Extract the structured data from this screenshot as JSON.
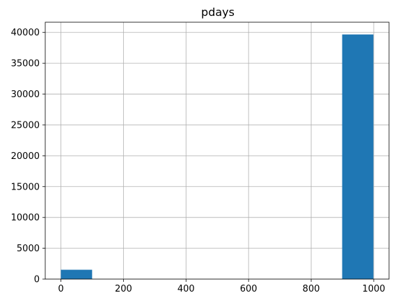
{
  "chart_data": {
    "type": "bar",
    "title": "pdays",
    "xlabel": "",
    "ylabel": "",
    "bins": [
      {
        "x0": 0,
        "x1": 99.9,
        "count": 1515
      },
      {
        "x0": 99.9,
        "x1": 199.8,
        "count": 0
      },
      {
        "x0": 199.8,
        "x1": 299.7,
        "count": 0
      },
      {
        "x0": 299.7,
        "x1": 399.6,
        "count": 0
      },
      {
        "x0": 399.6,
        "x1": 499.5,
        "count": 0
      },
      {
        "x0": 499.5,
        "x1": 599.4,
        "count": 0
      },
      {
        "x0": 599.4,
        "x1": 699.3,
        "count": 0
      },
      {
        "x0": 699.3,
        "x1": 799.2,
        "count": 0
      },
      {
        "x0": 799.2,
        "x1": 899.1,
        "count": 0
      },
      {
        "x0": 899.1,
        "x1": 999,
        "count": 39673
      }
    ],
    "xlim": [
      -49.95,
      1048.95
    ],
    "ylim": [
      0,
      41657
    ],
    "xticks": [
      0,
      200,
      400,
      600,
      800,
      1000
    ],
    "yticks": [
      0,
      5000,
      10000,
      15000,
      20000,
      25000,
      30000,
      35000,
      40000
    ],
    "grid": true,
    "bar_color": "#1f77b4",
    "grid_color": "#b0b0b0"
  }
}
